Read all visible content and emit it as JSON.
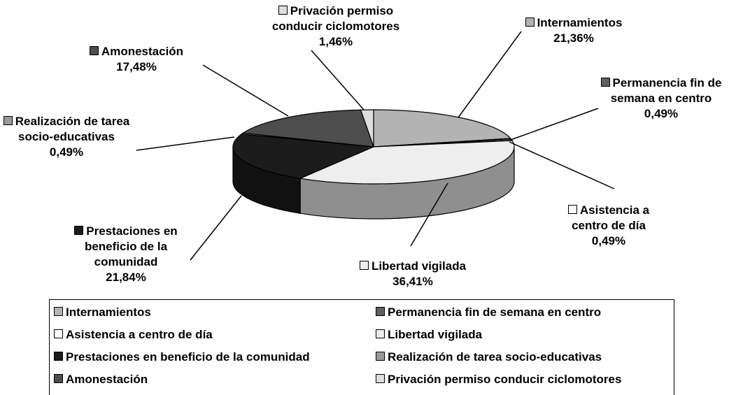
{
  "chart_data": {
    "type": "pie",
    "three_d": true,
    "categories": [
      "Internamientos",
      "Permanencia fin de semana en centro",
      "Asistencia a centro de día",
      "Libertad vigilada",
      "Prestaciones en beneficio de la comunidad",
      "Realización de tarea socio-educativas",
      "Amonestación",
      "Privación permiso conducir ciclomotores"
    ],
    "values": [
      21.36,
      0.49,
      0.49,
      36.41,
      21.84,
      0.49,
      17.48,
      1.46
    ],
    "value_labels": [
      "21,36%",
      "0,49%",
      "0,49%",
      "36,41%",
      "21,84%",
      "0,49%",
      "17,48%",
      "1,46%"
    ],
    "colors": [
      "#b3b3b3",
      "#5f5f5f",
      "#ffffff",
      "#eeeeee",
      "#1c1c1c",
      "#999999",
      "#4d4d4d",
      "#dddddd"
    ],
    "legend": "bottom"
  }
}
